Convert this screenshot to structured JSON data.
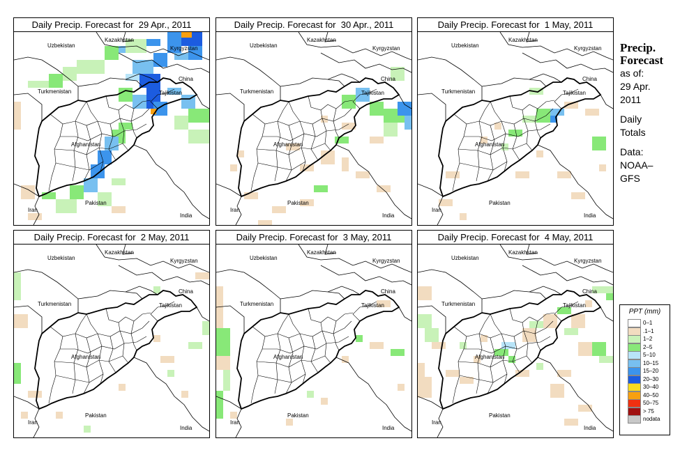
{
  "panels": [
    {
      "title": "Daily Precip. Forecast for  29 Apr., 2011"
    },
    {
      "title": "Daily Precip. Forecast for  30 Apr., 2011"
    },
    {
      "title": "Daily Precip. Forecast for  1 May, 2011"
    },
    {
      "title": "Daily Precip. Forecast for  2 May, 2011"
    },
    {
      "title": "Daily Precip. Forecast for  3 May, 2011"
    },
    {
      "title": "Daily Precip. Forecast for  4 May, 2011"
    }
  ],
  "map_labels": {
    "kazakhstan": "Kazakhstan",
    "uzbekistan": "Uzbekistan",
    "kyrgyzstan": "Kyrgyzstan",
    "turkmenistan": "Turkmenistan",
    "tajikistan": "Tajikistan",
    "china": "China",
    "afghanistan": "Afghanistan",
    "pakistan": "Pakistan",
    "iran": "Iran",
    "india": "India"
  },
  "side_info": {
    "title_line1": "Precip.",
    "title_line2": "Forecast",
    "asof": "as of:",
    "date_line1": "29 Apr.",
    "date_line2": "2011",
    "totals_line1": "Daily",
    "totals_line2": "Totals",
    "data_line1": "Data:",
    "data_line2": "NOAA–",
    "data_line3": "GFS"
  },
  "legend": {
    "title": "PPT (mm)",
    "items": [
      {
        "label": "0–1",
        "color": "#ffffff"
      },
      {
        "label": ".1–1",
        "color": "#f2dcc0"
      },
      {
        "label": "1–2",
        "color": "#c8f2b8"
      },
      {
        "label": "2–5",
        "color": "#88e878"
      },
      {
        "label": "5–10",
        "color": "#b8e4f8"
      },
      {
        "label": "10–15",
        "color": "#78c0f0"
      },
      {
        "label": "15–20",
        "color": "#3c94ec"
      },
      {
        "label": "20–30",
        "color": "#1c5ce0"
      },
      {
        "label": "30–40",
        "color": "#f8dc20"
      },
      {
        "label": "40–50",
        "color": "#f8a010"
      },
      {
        "label": "50–75",
        "color": "#f03010"
      },
      {
        "label": "> 75",
        "color": "#a01010"
      },
      {
        "label": "nodata",
        "color": "#c8c8c8"
      }
    ]
  }
}
